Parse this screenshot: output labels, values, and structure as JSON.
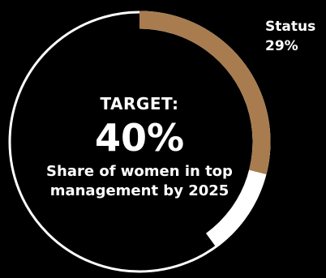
{
  "chart_data": {
    "type": "pie",
    "variant": "donut-progress",
    "target": {
      "label": "TARGET:",
      "value_text": "40%",
      "value": 40,
      "description": "Share of women in top management by 2025"
    },
    "status": {
      "label": "Status",
      "value_text": "29%",
      "value": 29
    },
    "colors": {
      "status_fill": "#a87c4f",
      "target_fill": "#ffffff",
      "outline": "#ffffff",
      "background": "#000000"
    }
  }
}
